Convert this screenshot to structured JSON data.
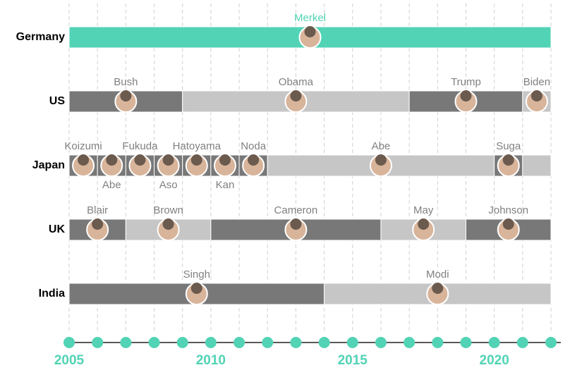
{
  "chart_data": {
    "type": "timeline",
    "xlim": [
      2005,
      2022
    ],
    "xticks": [
      2005,
      2010,
      2015,
      2020
    ],
    "x_minor_step": 1,
    "grid": true,
    "axis_color": "#52d3b5",
    "rows": [
      {
        "name": "Germany",
        "label_color": "#52d3b5",
        "segments": [
          {
            "name": "Merkel",
            "start": 2005,
            "end": 2022,
            "color": "#52d3b5"
          }
        ]
      },
      {
        "name": "US",
        "label_color": "#808080",
        "segments": [
          {
            "name": "Bush",
            "start": 2005,
            "end": 2009,
            "color": "#787878"
          },
          {
            "name": "Obama",
            "start": 2009,
            "end": 2017,
            "color": "#c6c6c6"
          },
          {
            "name": "Trump",
            "start": 2017,
            "end": 2021,
            "color": "#787878"
          },
          {
            "name": "Biden",
            "start": 2021,
            "end": 2022,
            "color": "#c6c6c6"
          }
        ]
      },
      {
        "name": "Japan",
        "label_color": "#808080",
        "segments": [
          {
            "name": "Koizumi",
            "start": 2005,
            "end": 2006,
            "color": "#787878"
          },
          {
            "name": "Abe",
            "start": 2006,
            "end": 2007,
            "color": "#787878",
            "label_position": "below"
          },
          {
            "name": "Fukuda",
            "start": 2007,
            "end": 2008,
            "color": "#787878"
          },
          {
            "name": "Aso",
            "start": 2008,
            "end": 2009,
            "color": "#787878",
            "label_position": "below"
          },
          {
            "name": "Hatoyama",
            "start": 2009,
            "end": 2010,
            "color": "#787878"
          },
          {
            "name": "Kan",
            "start": 2010,
            "end": 2011,
            "color": "#787878",
            "label_position": "below"
          },
          {
            "name": "Noda",
            "start": 2011,
            "end": 2012,
            "color": "#787878"
          },
          {
            "name": "Abe",
            "start": 2012,
            "end": 2020,
            "color": "#c6c6c6"
          },
          {
            "name": "Suga",
            "start": 2020,
            "end": 2021,
            "color": "#787878"
          },
          {
            "start": 2021,
            "end": 2022,
            "color": "#c6c6c6"
          }
        ]
      },
      {
        "name": "UK",
        "label_color": "#808080",
        "segments": [
          {
            "name": "Blair",
            "start": 2005,
            "end": 2007,
            "color": "#787878"
          },
          {
            "name": "Brown",
            "start": 2007,
            "end": 2010,
            "color": "#c6c6c6"
          },
          {
            "name": "Cameron",
            "start": 2010,
            "end": 2016,
            "color": "#787878"
          },
          {
            "name": "May",
            "start": 2016,
            "end": 2019,
            "color": "#c6c6c6"
          },
          {
            "name": "Johnson",
            "start": 2019,
            "end": 2022,
            "color": "#787878"
          }
        ]
      },
      {
        "name": "India",
        "label_color": "#808080",
        "segments": [
          {
            "name": "Singh",
            "start": 2005,
            "end": 2014,
            "color": "#787878"
          },
          {
            "name": "Modi",
            "start": 2014,
            "end": 2022,
            "color": "#c6c6c6"
          }
        ]
      }
    ]
  }
}
